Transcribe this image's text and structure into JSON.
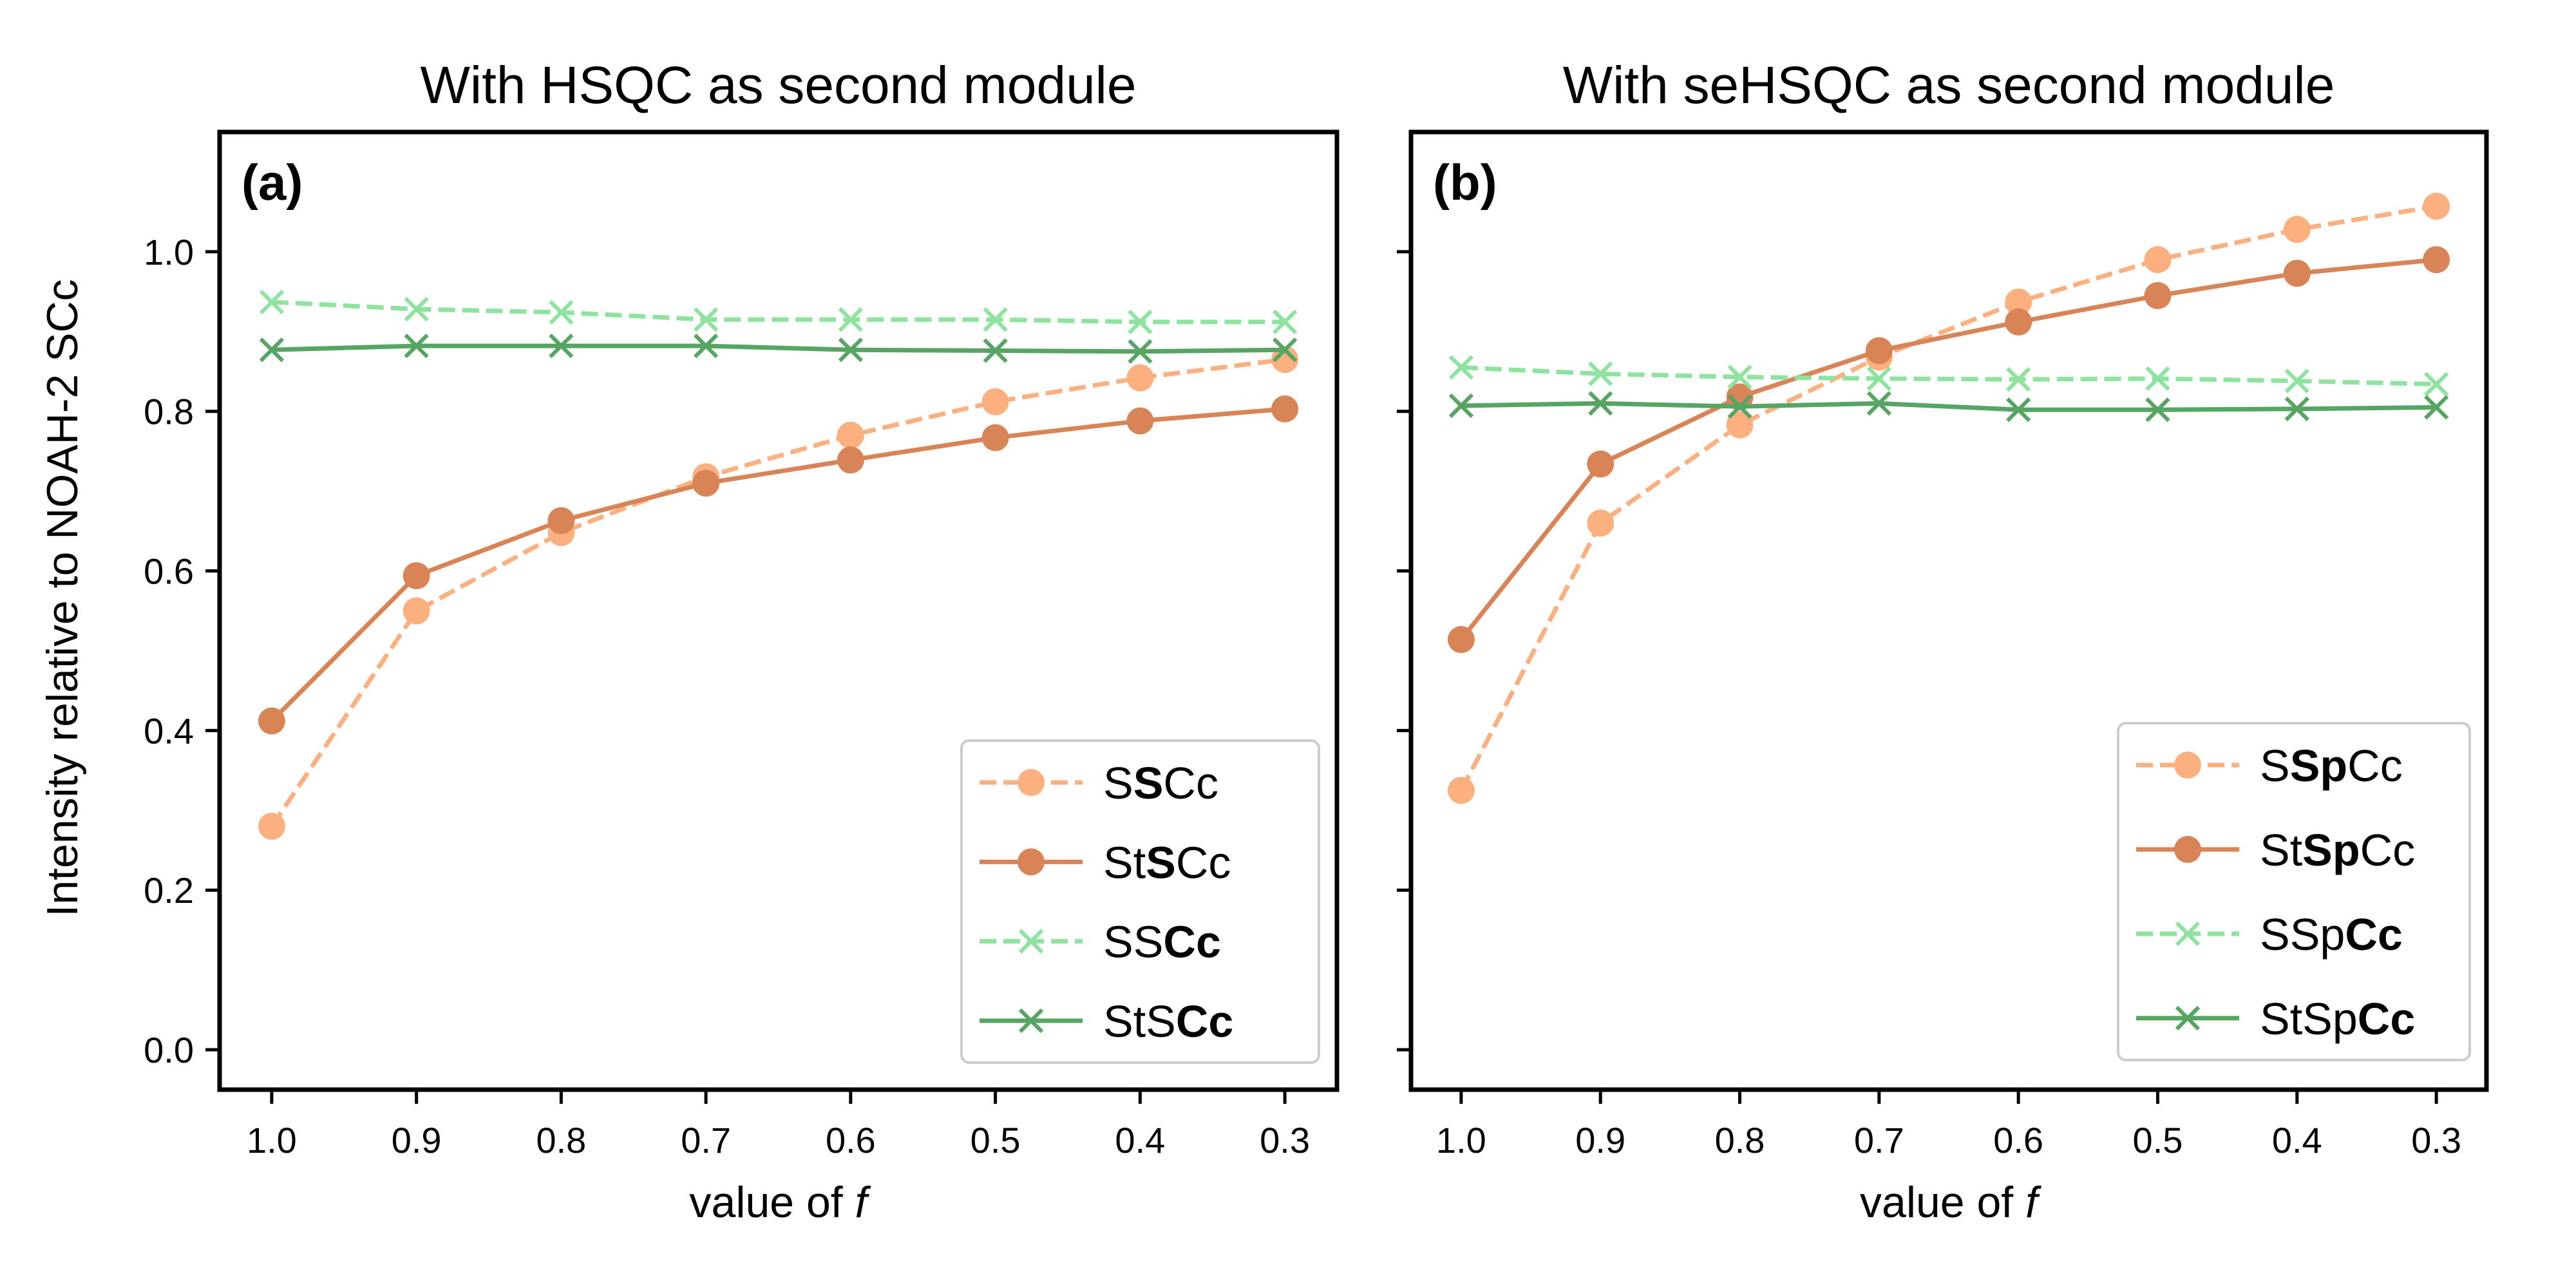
{
  "chart_data": [
    {
      "type": "line",
      "panel_label": "(a)",
      "title": "With HSQC as second module",
      "xlabel_prefix": "value of ",
      "xlabel_var": "f",
      "ylabel": "Intensity relative to NOAH-2 SCc",
      "x": [
        1.0,
        0.9,
        0.8,
        0.7,
        0.6,
        0.5,
        0.4,
        0.3
      ],
      "x_tick_labels": [
        "1.0",
        "0.9",
        "0.8",
        "0.7",
        "0.6",
        "0.5",
        "0.4",
        "0.3"
      ],
      "xlim": [
        1.036,
        0.264
      ],
      "ylim": [
        -0.05,
        1.15
      ],
      "y_ticks": [
        0.0,
        0.2,
        0.4,
        0.6,
        0.8,
        1.0
      ],
      "y_tick_labels": [
        "0.0",
        "0.2",
        "0.4",
        "0.6",
        "0.8",
        "1.0"
      ],
      "show_y_tick_labels": true,
      "legend_placement": "lower-right",
      "series": [
        {
          "name_parts": [
            {
              "t": "S",
              "b": false
            },
            {
              "t": "S",
              "b": true
            },
            {
              "t": "Cc",
              "b": false
            }
          ],
          "values": [
            0.28,
            0.55,
            0.648,
            0.718,
            0.77,
            0.812,
            0.842,
            0.865
          ],
          "color": "#fdb07f",
          "dash": true,
          "marker": "circle"
        },
        {
          "name_parts": [
            {
              "t": "St",
              "b": false
            },
            {
              "t": "S",
              "b": true
            },
            {
              "t": "Cc",
              "b": false
            }
          ],
          "values": [
            0.412,
            0.594,
            0.663,
            0.71,
            0.739,
            0.767,
            0.788,
            0.803
          ],
          "color": "#d98456",
          "dash": false,
          "marker": "circle"
        },
        {
          "name_parts": [
            {
              "t": "SS",
              "b": false
            },
            {
              "t": "Cc",
              "b": true
            }
          ],
          "values": [
            0.937,
            0.928,
            0.924,
            0.915,
            0.915,
            0.915,
            0.912,
            0.912
          ],
          "color": "#8ee39f",
          "dash": true,
          "marker": "x"
        },
        {
          "name_parts": [
            {
              "t": "StS",
              "b": false
            },
            {
              "t": "Cc",
              "b": true
            }
          ],
          "values": [
            0.877,
            0.882,
            0.882,
            0.882,
            0.877,
            0.876,
            0.875,
            0.877
          ],
          "color": "#57a563",
          "dash": false,
          "marker": "x"
        }
      ]
    },
    {
      "type": "line",
      "panel_label": "(b)",
      "title": "With seHSQC as second module",
      "xlabel_prefix": "value of ",
      "xlabel_var": "f",
      "ylabel": "",
      "x": [
        1.0,
        0.9,
        0.8,
        0.7,
        0.6,
        0.5,
        0.4,
        0.3
      ],
      "x_tick_labels": [
        "1.0",
        "0.9",
        "0.8",
        "0.7",
        "0.6",
        "0.5",
        "0.4",
        "0.3"
      ],
      "xlim": [
        1.036,
        0.264
      ],
      "ylim": [
        -0.05,
        1.15
      ],
      "y_ticks": [
        0.0,
        0.2,
        0.4,
        0.6,
        0.8,
        1.0
      ],
      "y_tick_labels": [
        "",
        "",
        "",
        "",
        "",
        ""
      ],
      "show_y_tick_labels": false,
      "legend_placement": "lower-right",
      "series": [
        {
          "name_parts": [
            {
              "t": "S",
              "b": false
            },
            {
              "t": "Sp",
              "b": true
            },
            {
              "t": "Cc",
              "b": false
            }
          ],
          "values": [
            0.325,
            0.66,
            0.783,
            0.868,
            0.937,
            0.99,
            1.028,
            1.057
          ],
          "color": "#fdb07f",
          "dash": true,
          "marker": "circle"
        },
        {
          "name_parts": [
            {
              "t": "St",
              "b": false
            },
            {
              "t": "Sp",
              "b": true
            },
            {
              "t": "Cc",
              "b": false
            }
          ],
          "values": [
            0.514,
            0.734,
            0.818,
            0.876,
            0.912,
            0.945,
            0.973,
            0.99
          ],
          "color": "#d98456",
          "dash": false,
          "marker": "circle"
        },
        {
          "name_parts": [
            {
              "t": "SSp",
              "b": false
            },
            {
              "t": "Cc",
              "b": true
            }
          ],
          "values": [
            0.855,
            0.847,
            0.843,
            0.841,
            0.84,
            0.841,
            0.838,
            0.834
          ],
          "color": "#8ee39f",
          "dash": true,
          "marker": "x"
        },
        {
          "name_parts": [
            {
              "t": "StSp",
              "b": false
            },
            {
              "t": "Cc",
              "b": true
            }
          ],
          "values": [
            0.807,
            0.81,
            0.806,
            0.81,
            0.802,
            0.802,
            0.803,
            0.805
          ],
          "color": "#57a563",
          "dash": false,
          "marker": "x"
        }
      ]
    }
  ]
}
